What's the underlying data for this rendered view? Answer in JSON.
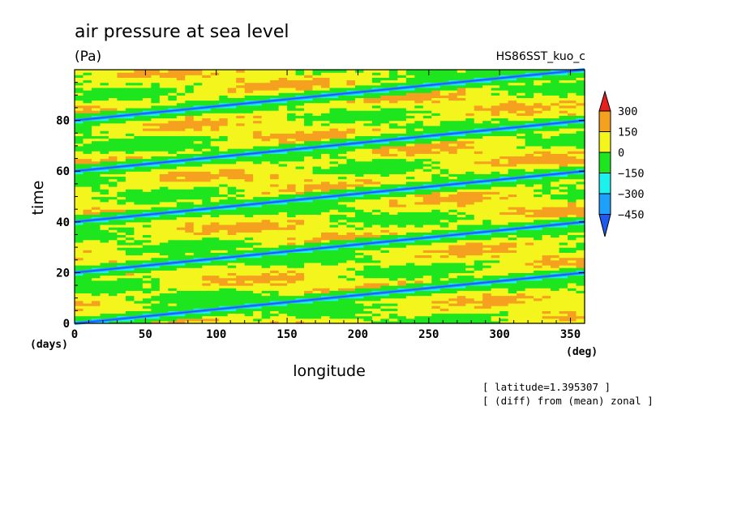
{
  "chart_data": {
    "type": "heatmap",
    "title": "air pressure at sea level",
    "units": "(Pa)",
    "experiment": "HS86SST_kuo_c",
    "xlabel": "longitude",
    "x_unit": "(deg)",
    "ylabel": "time",
    "y_unit": "(days)",
    "xlim": [
      0,
      360
    ],
    "ylim": [
      0,
      100
    ],
    "x_ticks": [
      0,
      50,
      100,
      150,
      200,
      250,
      300,
      350
    ],
    "y_ticks": [
      0,
      20,
      40,
      60,
      80
    ],
    "grid": false,
    "legend_position": "right",
    "colorbar": {
      "levels": [
        -450,
        -300,
        -150,
        0,
        150,
        300
      ],
      "colors": [
        "#1e5af0",
        "#1ea0ff",
        "#1ef0f0",
        "#1ee61e",
        "#f5f51e",
        "#f5a01e",
        "#e61e1e"
      ]
    },
    "features": {
      "trough_lines": [
        {
          "t0": 0,
          "t360": 20
        },
        {
          "t0": 20,
          "t360": 40
        },
        {
          "t0": 40,
          "t360": 60
        },
        {
          "t0": 60,
          "t360": 80
        },
        {
          "t0": 80,
          "t360": 100
        }
      ]
    },
    "annotations": [
      "[ latitude=1.395307 ]",
      "[ (diff) from (mean) zonal ]"
    ]
  }
}
